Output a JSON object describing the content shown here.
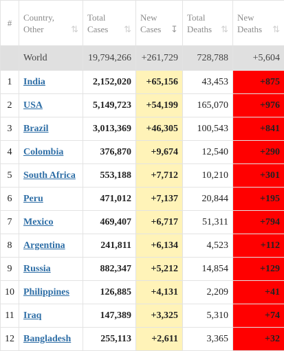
{
  "header": {
    "num": "#",
    "country": "Country, Other",
    "total_cases": "Total Cases",
    "new_cases": "New Cases",
    "total_deaths": "Total Deaths",
    "new_deaths": "New Deaths",
    "sort_icon": "⇅",
    "sort_active_icon": "↧"
  },
  "world": {
    "country": "World",
    "total_cases": "19,794,266",
    "new_cases": "+261,729",
    "total_deaths": "728,788",
    "new_deaths": "+5,604"
  },
  "rows": [
    {
      "rank": "1",
      "country": "India",
      "total_cases": "2,152,020",
      "new_cases": "+65,156",
      "total_deaths": "43,453",
      "new_deaths": "+875"
    },
    {
      "rank": "2",
      "country": "USA",
      "total_cases": "5,149,723",
      "new_cases": "+54,199",
      "total_deaths": "165,070",
      "new_deaths": "+976"
    },
    {
      "rank": "3",
      "country": "Brazil",
      "total_cases": "3,013,369",
      "new_cases": "+46,305",
      "total_deaths": "100,543",
      "new_deaths": "+841"
    },
    {
      "rank": "4",
      "country": "Colombia",
      "total_cases": "376,870",
      "new_cases": "+9,674",
      "total_deaths": "12,540",
      "new_deaths": "+290"
    },
    {
      "rank": "5",
      "country": "South Africa",
      "total_cases": "553,188",
      "new_cases": "+7,712",
      "total_deaths": "10,210",
      "new_deaths": "+301"
    },
    {
      "rank": "6",
      "country": "Peru",
      "total_cases": "471,012",
      "new_cases": "+7,137",
      "total_deaths": "20,844",
      "new_deaths": "+195"
    },
    {
      "rank": "7",
      "country": "Mexico",
      "total_cases": "469,407",
      "new_cases": "+6,717",
      "total_deaths": "51,311",
      "new_deaths": "+794"
    },
    {
      "rank": "8",
      "country": "Argentina",
      "total_cases": "241,811",
      "new_cases": "+6,134",
      "total_deaths": "4,523",
      "new_deaths": "+112"
    },
    {
      "rank": "9",
      "country": "Russia",
      "total_cases": "882,347",
      "new_cases": "+5,212",
      "total_deaths": "14,854",
      "new_deaths": "+129"
    },
    {
      "rank": "10",
      "country": "Philippines",
      "total_cases": "126,885",
      "new_cases": "+4,131",
      "total_deaths": "2,209",
      "new_deaths": "+41"
    },
    {
      "rank": "11",
      "country": "Iraq",
      "total_cases": "147,389",
      "new_cases": "+3,325",
      "total_deaths": "5,310",
      "new_deaths": "+74"
    },
    {
      "rank": "12",
      "country": "Bangladesh",
      "total_cases": "255,113",
      "new_cases": "+2,611",
      "total_deaths": "3,365",
      "new_deaths": "+32"
    }
  ],
  "colors": {
    "link": "#2e6ea6",
    "new_cases_bg": "#fff3b8",
    "new_deaths_bg": "#ff0000",
    "world_bg": "#e0e0e0"
  }
}
